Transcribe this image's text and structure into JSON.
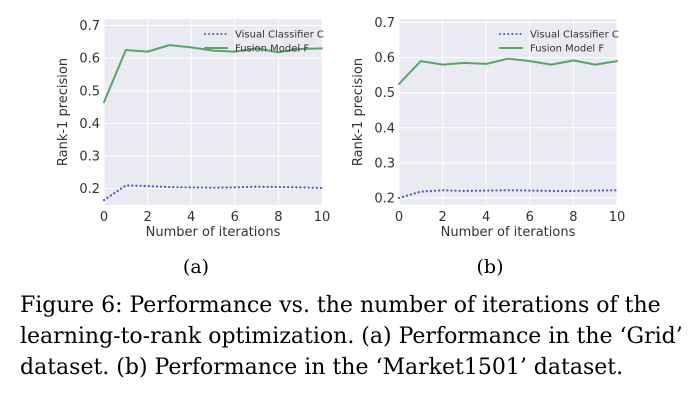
{
  "chart_data": [
    {
      "type": "line",
      "panel_label": "(a)",
      "xlabel": "Number of iterations",
      "ylabel": "Rank-1 precision",
      "xlim": [
        0,
        10
      ],
      "ylim": [
        0.15,
        0.72
      ],
      "xticks": [
        0,
        2,
        4,
        6,
        8,
        10
      ],
      "yticks": [
        0.2,
        0.3,
        0.4,
        0.5,
        0.6,
        0.7
      ],
      "ytick_labels": [
        "0.2",
        "0.3",
        "0.4",
        "0.5",
        "0.6",
        "0.7"
      ],
      "x": [
        0,
        1,
        2,
        3,
        4,
        5,
        6,
        7,
        8,
        9,
        10
      ],
      "legend_position": "top-right",
      "grid": true,
      "series": [
        {
          "name": "Visual Classifier C",
          "style": "dotted",
          "color": "#4c5ab7",
          "values": [
            0.165,
            0.21,
            0.208,
            0.205,
            0.204,
            0.203,
            0.204,
            0.206,
            0.205,
            0.204,
            0.202
          ]
        },
        {
          "name": "Fusion Model F",
          "style": "solid",
          "color": "#5aa469",
          "values": [
            0.465,
            0.625,
            0.62,
            0.64,
            0.633,
            0.623,
            0.62,
            0.63,
            0.618,
            0.628,
            0.63
          ]
        }
      ]
    },
    {
      "type": "line",
      "panel_label": "(b)",
      "xlabel": "Number of iterations",
      "ylabel": "Rank-1 precision",
      "xlim": [
        0,
        10
      ],
      "ylim": [
        0.18,
        0.71
      ],
      "xticks": [
        0,
        2,
        4,
        6,
        8,
        10
      ],
      "yticks": [
        0.2,
        0.3,
        0.4,
        0.5,
        0.6,
        0.7
      ],
      "ytick_labels": [
        "0.2",
        "0.3",
        "0.4",
        "0.5",
        "0.6",
        "0.7"
      ],
      "x": [
        0,
        1,
        2,
        3,
        4,
        5,
        6,
        7,
        8,
        9,
        10
      ],
      "legend_position": "top-right",
      "grid": true,
      "series": [
        {
          "name": "Visual Classifier C",
          "style": "dotted",
          "color": "#4c5ab7",
          "values": [
            0.2,
            0.218,
            0.222,
            0.22,
            0.221,
            0.222,
            0.221,
            0.22,
            0.22,
            0.221,
            0.222
          ]
        },
        {
          "name": "Fusion Model F",
          "style": "solid",
          "color": "#5aa469",
          "values": [
            0.525,
            0.59,
            0.58,
            0.585,
            0.582,
            0.597,
            0.59,
            0.58,
            0.592,
            0.58,
            0.59
          ]
        }
      ]
    }
  ],
  "caption": "Figure 6: Performance vs. the number of iterations of the learning-to-rank optimization. (a) Performance in the ‘Grid’ dataset. (b) Performance in the ‘Market1501’ dataset."
}
